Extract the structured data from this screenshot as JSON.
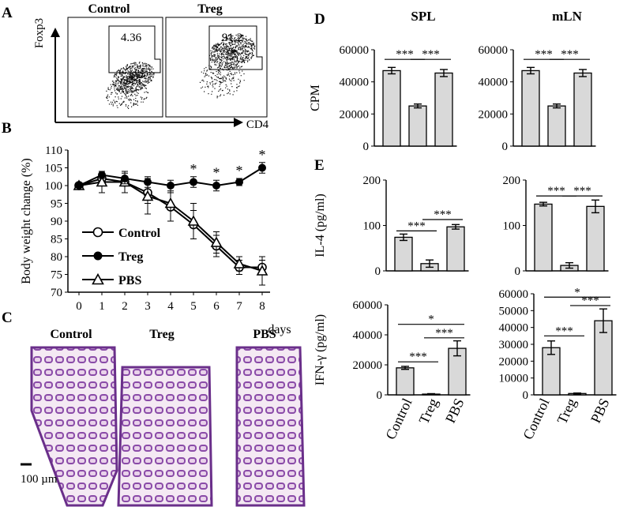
{
  "panel_labels": {
    "a": "A",
    "b": "B",
    "c": "C",
    "d": "D",
    "e": "E"
  },
  "flow": {
    "y_axis_label": "Foxp3",
    "x_axis_label": "CD4",
    "plots": [
      {
        "title": "Control",
        "gate_value": "4.36"
      },
      {
        "title": "Treg",
        "gate_value": "91.2"
      }
    ]
  },
  "histology": {
    "labels": [
      "Control",
      "Treg",
      "PBS"
    ],
    "scale_bar_label": "100 µm",
    "colors": {
      "stain_dark": "#5b2a86",
      "stain_light": "#c98fc9",
      "background": "#f7eef7"
    }
  },
  "spl_title": "SPL",
  "mln_title": "mLN",
  "chart_data": [
    {
      "id": "body-weight",
      "type": "line",
      "ylabel": "Body weight change (%)",
      "xlabel": "days",
      "x": [
        0,
        1,
        2,
        3,
        4,
        5,
        6,
        7,
        8
      ],
      "xlim": [
        0,
        8
      ],
      "ylim": [
        70,
        110
      ],
      "yticks": [
        70,
        75,
        80,
        85,
        90,
        95,
        100,
        105,
        110
      ],
      "series": [
        {
          "name": "Control",
          "marker": "open-circle",
          "values": [
            100,
            102,
            101,
            98,
            94,
            89,
            83,
            77,
            77
          ],
          "errors": [
            0.5,
            2,
            3,
            3,
            4,
            4,
            3,
            2,
            2
          ]
        },
        {
          "name": "Treg",
          "marker": "filled-circle",
          "values": [
            100,
            103,
            102,
            101,
            100,
            101,
            100,
            101,
            105
          ],
          "errors": [
            0.5,
            1,
            1.5,
            1.5,
            1.5,
            1.5,
            1.5,
            1,
            1.5
          ]
        },
        {
          "name": "PBS",
          "marker": "open-triangle",
          "values": [
            100,
            101,
            101,
            97,
            95,
            90,
            84,
            78,
            76
          ],
          "errors": [
            0.5,
            3,
            3,
            5,
            5,
            5,
            3,
            2,
            4
          ]
        }
      ],
      "significance": [
        {
          "x": 5,
          "label": "*"
        },
        {
          "x": 6,
          "label": "*"
        },
        {
          "x": 7,
          "label": "*"
        },
        {
          "x": 8,
          "label": "*"
        }
      ],
      "legend": "left"
    },
    {
      "id": "spl-cpm",
      "type": "bar",
      "categories": [
        "Control",
        "Treg",
        "PBS"
      ],
      "values": [
        47000,
        25000,
        45500
      ],
      "errors": [
        2000,
        1200,
        2200
      ],
      "ylabel": "CPM",
      "ylim": [
        0,
        60000
      ],
      "yticks": [
        0,
        20000,
        40000,
        60000
      ],
      "significance": [
        {
          "from": 0,
          "to": 1,
          "label": "***",
          "level": 54000
        },
        {
          "from": 1,
          "to": 2,
          "label": "***",
          "level": 54000
        }
      ]
    },
    {
      "id": "mln-cpm",
      "type": "bar",
      "categories": [
        "Control",
        "Treg",
        "PBS"
      ],
      "values": [
        47000,
        25000,
        45500
      ],
      "errors": [
        2000,
        1200,
        2200
      ],
      "ylabel": "",
      "ylim": [
        0,
        60000
      ],
      "yticks": [
        0,
        20000,
        40000,
        60000
      ],
      "significance": [
        {
          "from": 0,
          "to": 1,
          "label": "***",
          "level": 54000
        },
        {
          "from": 1,
          "to": 2,
          "label": "***",
          "level": 54000
        }
      ]
    },
    {
      "id": "spl-il4",
      "type": "bar",
      "categories": [
        "Control",
        "Treg",
        "PBS"
      ],
      "values": [
        74,
        16,
        97
      ],
      "errors": [
        7,
        8,
        5
      ],
      "ylabel": "IL-4 (pg/ml)",
      "ylim": [
        0,
        200
      ],
      "yticks": [
        0,
        100,
        200
      ],
      "significance": [
        {
          "from": 0,
          "to": 1,
          "label": "***",
          "level": 88
        },
        {
          "from": 1,
          "to": 2,
          "label": "***",
          "level": 113
        }
      ]
    },
    {
      "id": "mln-il4",
      "type": "bar",
      "categories": [
        "Control",
        "Treg",
        "PBS"
      ],
      "values": [
        147,
        12,
        142
      ],
      "errors": [
        4,
        6,
        14
      ],
      "ylabel": "",
      "ylim": [
        0,
        200
      ],
      "yticks": [
        0,
        100,
        200
      ],
      "significance": [
        {
          "from": 0,
          "to": 1,
          "label": "***",
          "level": 165
        },
        {
          "from": 1,
          "to": 2,
          "label": "***",
          "level": 165
        }
      ]
    },
    {
      "id": "spl-ifng",
      "type": "bar",
      "categories": [
        "Control",
        "Treg",
        "PBS"
      ],
      "values": [
        18000,
        500,
        31000
      ],
      "errors": [
        1000,
        300,
        5000
      ],
      "ylabel": "IFN-γ (pg/ml)",
      "ylim": [
        0,
        60000
      ],
      "yticks": [
        0,
        20000,
        40000,
        60000
      ],
      "significance": [
        {
          "from": 0,
          "to": 1,
          "label": "***",
          "level": 22000
        },
        {
          "from": 1,
          "to": 2,
          "label": "***",
          "level": 38000
        },
        {
          "from": 0,
          "to": 2,
          "label": "*",
          "level": 47000
        }
      ]
    },
    {
      "id": "mln-ifng",
      "type": "bar",
      "categories": [
        "Control",
        "Treg",
        "PBS"
      ],
      "values": [
        28000,
        800,
        44000
      ],
      "errors": [
        4000,
        300,
        7000
      ],
      "ylabel": "",
      "ylim": [
        0,
        60000
      ],
      "yticks": [
        0,
        10000,
        20000,
        30000,
        40000,
        50000,
        60000
      ],
      "significance": [
        {
          "from": 0,
          "to": 1,
          "label": "***",
          "level": 35000
        },
        {
          "from": 1,
          "to": 2,
          "label": "***",
          "level": 53000
        },
        {
          "from": 0,
          "to": 2,
          "label": "*",
          "level": 58000
        }
      ]
    }
  ],
  "colors": {
    "bar_fill": "#d9d9d9",
    "line": "#000000",
    "flow_dots": "#111111"
  }
}
